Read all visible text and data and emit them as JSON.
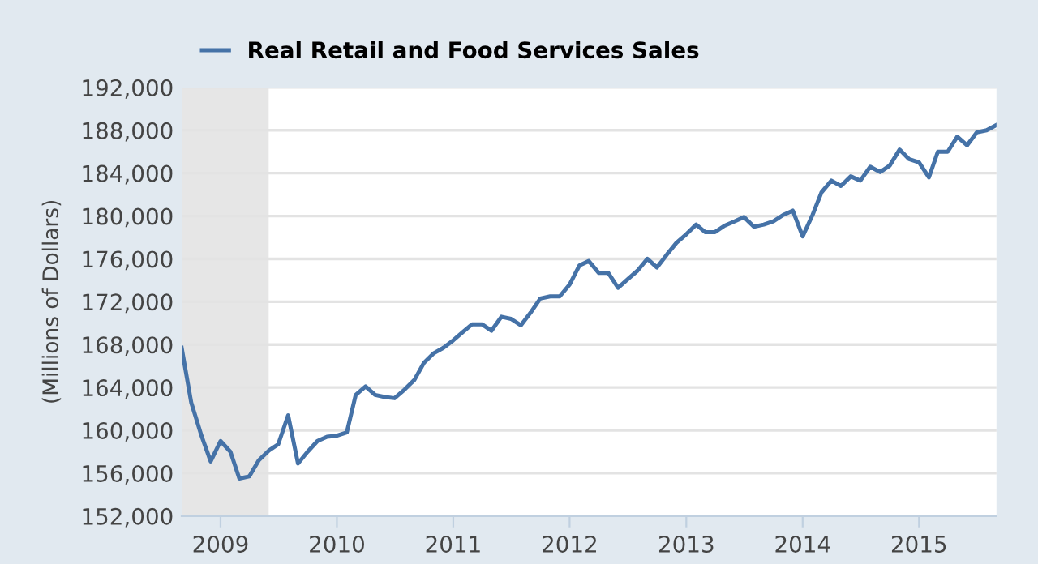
{
  "chart_data": {
    "type": "line",
    "ylabel": "(Millions of Dollars)",
    "x": [
      "2008-09",
      "2008-10",
      "2008-11",
      "2008-12",
      "2009-01",
      "2009-02",
      "2009-03",
      "2009-04",
      "2009-05",
      "2009-06",
      "2009-07",
      "2009-08",
      "2009-09",
      "2009-10",
      "2009-11",
      "2009-12",
      "2010-01",
      "2010-02",
      "2010-03",
      "2010-04",
      "2010-05",
      "2010-06",
      "2010-07",
      "2010-08",
      "2010-09",
      "2010-10",
      "2010-11",
      "2010-12",
      "2011-01",
      "2011-02",
      "2011-03",
      "2011-04",
      "2011-05",
      "2011-06",
      "2011-07",
      "2011-08",
      "2011-09",
      "2011-10",
      "2011-11",
      "2011-12",
      "2012-01",
      "2012-02",
      "2012-03",
      "2012-04",
      "2012-05",
      "2012-06",
      "2012-07",
      "2012-08",
      "2012-09",
      "2012-10",
      "2012-11",
      "2012-12",
      "2013-01",
      "2013-02",
      "2013-03",
      "2013-04",
      "2013-05",
      "2013-06",
      "2013-07",
      "2013-08",
      "2013-09",
      "2013-10",
      "2013-11",
      "2013-12",
      "2014-01",
      "2014-02",
      "2014-03",
      "2014-04",
      "2014-05",
      "2014-06",
      "2014-07",
      "2014-08",
      "2014-09",
      "2014-10",
      "2014-11",
      "2014-12",
      "2015-01",
      "2015-02",
      "2015-03",
      "2015-04",
      "2015-05",
      "2015-06",
      "2015-07",
      "2015-08",
      "2015-09"
    ],
    "series": [
      {
        "name": "Real Retail and Food Services Sales",
        "color": "#4572a7",
        "values": [
          167700,
          162600,
          159600,
          157100,
          159000,
          158000,
          155500,
          155700,
          157200,
          158100,
          158700,
          161400,
          156900,
          158000,
          159000,
          159400,
          159500,
          159800,
          163300,
          164100,
          163300,
          163100,
          163000,
          163800,
          164700,
          166300,
          167200,
          167700,
          168400,
          169200,
          169900,
          169900,
          169300,
          170600,
          170400,
          169800,
          171000,
          172300,
          172500,
          172500,
          173600,
          175400,
          175800,
          174700,
          174700,
          173300,
          174100,
          174900,
          176000,
          175200,
          176400,
          177500,
          178300,
          179200,
          178500,
          178500,
          179100,
          179500,
          179900,
          179000,
          179200,
          179500,
          180100,
          180500,
          178100,
          180100,
          182200,
          183300,
          182800,
          183700,
          183300,
          184600,
          184100,
          184700,
          186200,
          185300,
          185000,
          183600,
          186000,
          186000,
          187400,
          186600,
          187800,
          188000,
          188500
        ]
      }
    ],
    "xlim": [
      "2008-09",
      "2015-09"
    ],
    "xticks": [
      {
        "value": "2009-01",
        "label": "2009"
      },
      {
        "value": "2010-01",
        "label": "2010"
      },
      {
        "value": "2011-01",
        "label": "2011"
      },
      {
        "value": "2012-01",
        "label": "2012"
      },
      {
        "value": "2013-01",
        "label": "2013"
      },
      {
        "value": "2014-01",
        "label": "2014"
      },
      {
        "value": "2015-01",
        "label": "2015"
      }
    ],
    "ylim": [
      152000,
      192000
    ],
    "yticks": [
      {
        "value": 152000,
        "label": "152,000"
      },
      {
        "value": 156000,
        "label": "156,000"
      },
      {
        "value": 160000,
        "label": "160,000"
      },
      {
        "value": 164000,
        "label": "164,000"
      },
      {
        "value": 168000,
        "label": "168,000"
      },
      {
        "value": 172000,
        "label": "172,000"
      },
      {
        "value": 176000,
        "label": "176,000"
      },
      {
        "value": 180000,
        "label": "180,000"
      },
      {
        "value": 184000,
        "label": "184,000"
      },
      {
        "value": 188000,
        "label": "188,000"
      },
      {
        "value": 192000,
        "label": "192,000"
      }
    ],
    "bands": [
      {
        "axis": "x",
        "from": "2008-09",
        "to": "2009-06",
        "color": "#e6e6e6"
      }
    ],
    "grid": "y",
    "legend": "top left",
    "marker": "none",
    "line_style": "solid"
  }
}
